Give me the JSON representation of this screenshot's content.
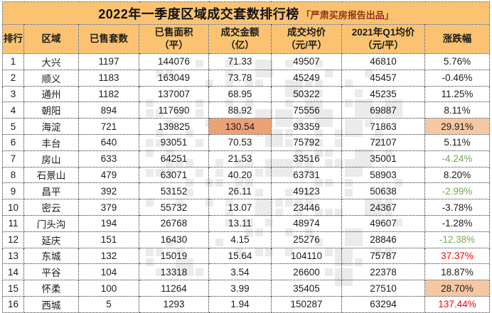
{
  "title": {
    "main": "2022年一季度区域成交套数排行榜",
    "note": "「严肃买房报告出品」"
  },
  "colors": {
    "header_bg": "#FBC371",
    "note_text": "#8F3617",
    "negative_green": "#76A94F",
    "positive_red": "#FF0000",
    "highlight_strong": "#ECA177",
    "highlight_light": "#F5C7A2"
  },
  "table": {
    "columns": [
      {
        "key": "rank",
        "lines": [
          "排行"
        ]
      },
      {
        "key": "region",
        "lines": [
          "区域"
        ]
      },
      {
        "key": "units",
        "lines": [
          "已售套数"
        ]
      },
      {
        "key": "area",
        "lines": [
          "已售面积",
          "（平）"
        ]
      },
      {
        "key": "amount",
        "lines": [
          "成交金额",
          "（亿）"
        ]
      },
      {
        "key": "avg",
        "lines": [
          "成交均价",
          "（元/平）"
        ]
      },
      {
        "key": "q1",
        "lines": [
          "2021年Q1均价",
          "（元/平）"
        ]
      },
      {
        "key": "change",
        "lines": [
          "涨跌幅"
        ]
      }
    ],
    "rows": [
      {
        "rank": "1",
        "region": "大兴",
        "units": "1197",
        "area": "144076",
        "amount": "71.33",
        "avg": "49507",
        "q1": "46810",
        "change": "5.76%",
        "change_class": "",
        "amount_highlight": false,
        "change_highlight": false
      },
      {
        "rank": "2",
        "region": "顺义",
        "units": "1183",
        "area": "163049",
        "amount": "73.78",
        "avg": "45249",
        "q1": "45457",
        "change": "-0.46%",
        "change_class": "",
        "amount_highlight": false,
        "change_highlight": false
      },
      {
        "rank": "3",
        "region": "通州",
        "units": "1182",
        "area": "137007",
        "amount": "68.95",
        "avg": "50322",
        "q1": "45235",
        "change": "11.25%",
        "change_class": "",
        "amount_highlight": false,
        "change_highlight": false
      },
      {
        "rank": "4",
        "region": "朝阳",
        "units": "894",
        "area": "117690",
        "amount": "88.92",
        "avg": "75556",
        "q1": "69887",
        "change": "8.11%",
        "change_class": "",
        "amount_highlight": false,
        "change_highlight": false
      },
      {
        "rank": "5",
        "region": "海淀",
        "units": "721",
        "area": "139825",
        "amount": "130.54",
        "avg": "93359",
        "q1": "71863",
        "change": "29.91%",
        "change_class": "",
        "amount_highlight": true,
        "change_highlight": true
      },
      {
        "rank": "6",
        "region": "丰台",
        "units": "640",
        "area": "93051",
        "amount": "70.53",
        "avg": "75792",
        "q1": "72107",
        "change": "5.11%",
        "change_class": "",
        "amount_highlight": false,
        "change_highlight": false
      },
      {
        "rank": "7",
        "region": "房山",
        "units": "633",
        "area": "64251",
        "amount": "21.53",
        "avg": "33516",
        "q1": "35001",
        "change": "-4.24%",
        "change_class": "green",
        "amount_highlight": false,
        "change_highlight": false
      },
      {
        "rank": "8",
        "region": "石景山",
        "units": "479",
        "area": "63071",
        "amount": "40.20",
        "avg": "63731",
        "q1": "58903",
        "change": "8.20%",
        "change_class": "",
        "amount_highlight": false,
        "change_highlight": false
      },
      {
        "rank": "9",
        "region": "昌平",
        "units": "392",
        "area": "53152",
        "amount": "26.11",
        "avg": "49123",
        "q1": "50638",
        "change": "-2.99%",
        "change_class": "green",
        "amount_highlight": false,
        "change_highlight": false
      },
      {
        "rank": "10",
        "region": "密云",
        "units": "379",
        "area": "55732",
        "amount": "13.07",
        "avg": "23446",
        "q1": "24367",
        "change": "-3.78%",
        "change_class": "",
        "amount_highlight": false,
        "change_highlight": false
      },
      {
        "rank": "11",
        "region": "门头沟",
        "units": "194",
        "area": "26768",
        "amount": "13.11",
        "avg": "48974",
        "q1": "49607",
        "change": "-1.28%",
        "change_class": "",
        "amount_highlight": false,
        "change_highlight": false
      },
      {
        "rank": "12",
        "region": "延庆",
        "units": "151",
        "area": "16430",
        "amount": "4.15",
        "avg": "25276",
        "q1": "28846",
        "change": "-12.38%",
        "change_class": "green",
        "amount_highlight": false,
        "change_highlight": false
      },
      {
        "rank": "13",
        "region": "东城",
        "units": "132",
        "area": "15019",
        "amount": "15.64",
        "avg": "104110",
        "q1": "75787",
        "change": "37.37%",
        "change_class": "red",
        "amount_highlight": false,
        "change_highlight": false
      },
      {
        "rank": "14",
        "region": "平谷",
        "units": "104",
        "area": "13318",
        "amount": "3.54",
        "avg": "26600",
        "q1": "22378",
        "change": "18.87%",
        "change_class": "",
        "amount_highlight": false,
        "change_highlight": false
      },
      {
        "rank": "15",
        "region": "怀柔",
        "units": "100",
        "area": "11264",
        "amount": "3.99",
        "avg": "35405",
        "q1": "27510",
        "change": "28.70%",
        "change_class": "",
        "amount_highlight": false,
        "change_highlight": true
      },
      {
        "rank": "16",
        "region": "西城",
        "units": "5",
        "area": "1293",
        "amount": "1.94",
        "avg": "150287",
        "q1": "63294",
        "change": "137.44%",
        "change_class": "red",
        "amount_highlight": false,
        "change_highlight": false
      }
    ]
  }
}
